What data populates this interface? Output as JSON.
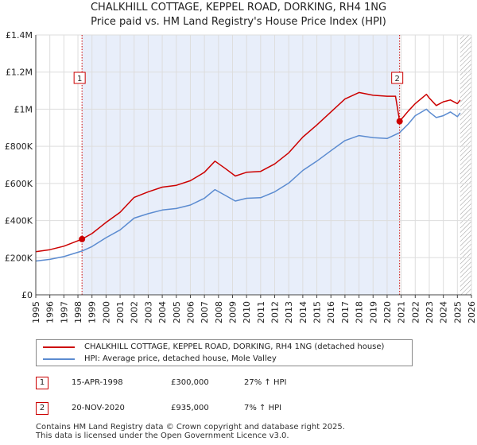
{
  "title_line1": "CHALKHILL COTTAGE, KEPPEL ROAD, DORKING, RH4 1NG",
  "title_line2": "Price paid vs. HM Land Registry's House Price Index (HPI)",
  "colors": {
    "property": "#cc0000",
    "hpi": "#5b8bd0",
    "shade": "#e8eefa",
    "grid": "#dddddd",
    "marker": "#cc0000"
  },
  "chart_data": {
    "type": "line",
    "title": "Price paid vs. HM Land Registry's House Price Index (HPI)",
    "xlabel": "",
    "ylabel": "",
    "xlim": [
      1995,
      2026
    ],
    "ylim": [
      0,
      1400000
    ],
    "x_ticks": [
      "1995",
      "1996",
      "1997",
      "1998",
      "1999",
      "2000",
      "2001",
      "2002",
      "2003",
      "2004",
      "2005",
      "2006",
      "2007",
      "2008",
      "2009",
      "2010",
      "2011",
      "2012",
      "2013",
      "2014",
      "2015",
      "2016",
      "2017",
      "2018",
      "2019",
      "2020",
      "2021",
      "2022",
      "2023",
      "2024",
      "2025",
      "2026"
    ],
    "y_ticks": [
      {
        "value": 0,
        "label": "£0"
      },
      {
        "value": 200000,
        "label": "£200K"
      },
      {
        "value": 400000,
        "label": "£400K"
      },
      {
        "value": 600000,
        "label": "£600K"
      },
      {
        "value": 800000,
        "label": "£800K"
      },
      {
        "value": 1000000,
        "label": "£1M"
      },
      {
        "value": 1200000,
        "label": "£1.2M"
      },
      {
        "value": 1400000,
        "label": "£1.4M"
      }
    ],
    "grid": true,
    "shaded_range": [
      1998.29,
      2020.89
    ],
    "hatched_from": 2025.2,
    "series": [
      {
        "name": "CHALKHILL COTTAGE, KEPPEL ROAD, DORKING, RH4 1NG (detached house)",
        "x": [
          1995,
          1996,
          1997,
          1998.29,
          1999,
          2000,
          2001,
          2002,
          2003,
          2004,
          2005,
          2006,
          2007,
          2007.75,
          2008.5,
          2009.2,
          2010,
          2011,
          2012,
          2013,
          2014,
          2015,
          2016,
          2017,
          2018,
          2019,
          2020,
          2020.6,
          2020.89,
          2021.5,
          2022,
          2022.8,
          2023,
          2023.5,
          2024,
          2024.5,
          2025,
          2025.2
        ],
        "values": [
          232000,
          243000,
          262000,
          300000,
          330000,
          390000,
          445000,
          525000,
          555000,
          580000,
          590000,
          615000,
          660000,
          720000,
          680000,
          640000,
          660000,
          665000,
          705000,
          765000,
          850000,
          915000,
          985000,
          1055000,
          1090000,
          1075000,
          1070000,
          1070000,
          935000,
          990000,
          1030000,
          1080000,
          1060000,
          1020000,
          1040000,
          1050000,
          1030000,
          1050000
        ]
      },
      {
        "name": "HPI: Average price, detached house, Mole Valley",
        "x": [
          1995,
          1996,
          1997,
          1998.29,
          1999,
          2000,
          2001,
          2002,
          2003,
          2004,
          2005,
          2006,
          2007,
          2007.75,
          2008.5,
          2009.2,
          2010,
          2011,
          2012,
          2013,
          2014,
          2015,
          2016,
          2017,
          2018,
          2019,
          2020,
          2020.89,
          2021.5,
          2022,
          2022.8,
          2023,
          2023.5,
          2024,
          2024.5,
          2025,
          2025.2
        ],
        "values": [
          182000,
          191000,
          206000,
          236000,
          260000,
          308000,
          350000,
          413000,
          437000,
          457000,
          465000,
          484000,
          520000,
          567000,
          535000,
          505000,
          520000,
          523000,
          555000,
          602000,
          670000,
          720000,
          776000,
          831000,
          858000,
          847000,
          842000,
          874000,
          920000,
          965000,
          1000000,
          985000,
          955000,
          965000,
          985000,
          960000,
          980000
        ]
      }
    ],
    "markers": [
      {
        "id": "1",
        "x": 1998.29,
        "value": 300000
      },
      {
        "id": "2",
        "x": 2020.89,
        "value": 935000
      }
    ]
  },
  "legend": {
    "property_label": "CHALKHILL COTTAGE, KEPPEL ROAD, DORKING, RH4 1NG (detached house)",
    "hpi_label": "HPI: Average price, detached house, Mole Valley"
  },
  "transactions": [
    {
      "id": "1",
      "date": "15-APR-1998",
      "price": "£300,000",
      "hpi_change": "27% ↑ HPI"
    },
    {
      "id": "2",
      "date": "20-NOV-2020",
      "price": "£935,000",
      "hpi_change": "7% ↑ HPI"
    }
  ],
  "footer_line1": "Contains HM Land Registry data © Crown copyright and database right 2025.",
  "footer_line2": "This data is licensed under the Open Government Licence v3.0."
}
